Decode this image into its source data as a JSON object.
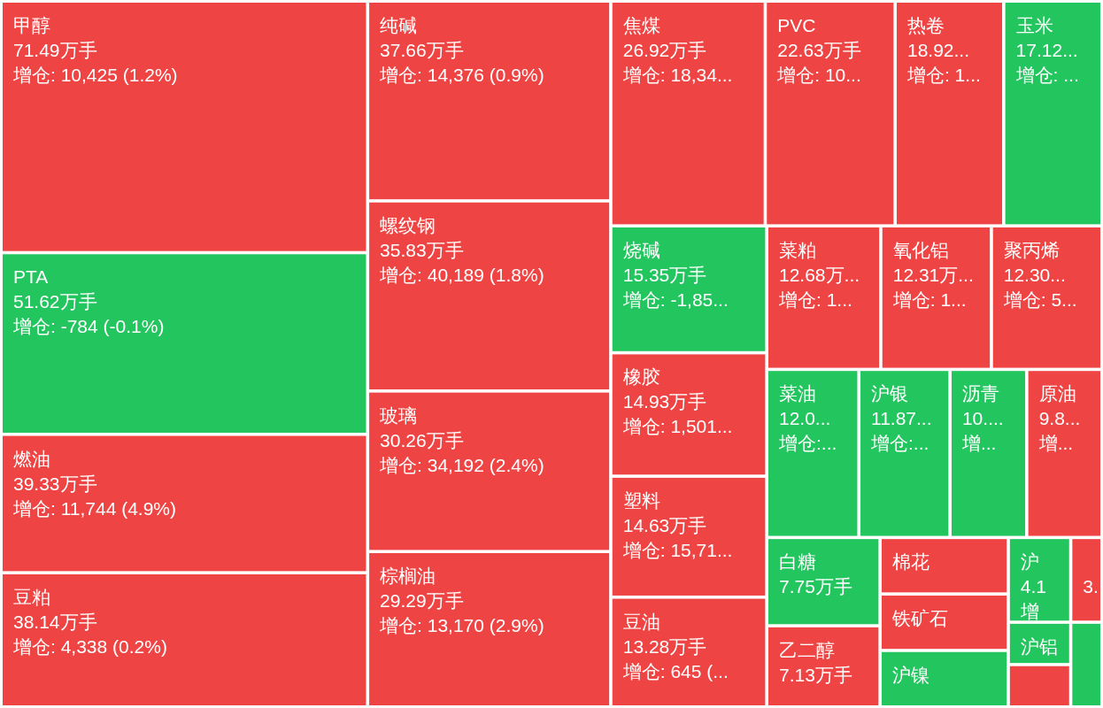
{
  "chart_data": {
    "type": "other",
    "categories": [
      "甲醇",
      "PTA",
      "燃油",
      "豆粕",
      "纯碱",
      "螺纹钢",
      "玻璃",
      "棕榈油",
      "焦煤",
      "PVC",
      "热卷",
      "玉米",
      "烧碱",
      "橡胶",
      "塑料",
      "豆油",
      "菜粕",
      "氧化铝",
      "聚丙烯",
      "菜油",
      "沪银",
      "沥青",
      "原油",
      "白糖",
      "乙二醇",
      "棉花",
      "铁矿石",
      "沪镍",
      "沪",
      null,
      "沪铝",
      null,
      null
    ],
    "values": [
      71.49,
      51.62,
      39.33,
      38.14,
      37.66,
      35.83,
      30.26,
      29.29,
      26.92,
      22.63,
      18.92,
      17.12,
      15.35,
      14.93,
      14.63,
      13.28,
      12.68,
      12.31,
      12.3,
      12.0,
      11.87,
      10,
      9.8,
      7.75,
      7.13,
      null,
      null,
      null,
      4.1,
      null,
      null,
      null,
      null
    ],
    "value_labels": [
      "71.49万手",
      "51.62万手",
      "39.33万手",
      "38.14万手",
      "37.66万手",
      "35.83万手",
      "30.26万手",
      "29.29万手",
      "26.92万手",
      "22.63万手",
      "18.92...",
      "17.12...",
      "15.35万手",
      "14.93万手",
      "14.63万手",
      "13.28万手",
      "12.68万...",
      "12.31万...",
      "12.30...",
      "12.0...",
      "11.87...",
      "10....",
      "9.8...",
      "7.75万手",
      "7.13万手",
      null,
      null,
      null,
      "4.1",
      "3.",
      null,
      null,
      null
    ],
    "colors": [
      "#ef4444",
      "#22c55e",
      "#ef4444",
      "#ef4444",
      "#ef4444",
      "#ef4444",
      "#ef4444",
      "#ef4444",
      "#ef4444",
      "#ef4444",
      "#ef4444",
      "#22c55e",
      "#22c55e",
      "#ef4444",
      "#ef4444",
      "#ef4444",
      "#ef4444",
      "#ef4444",
      "#ef4444",
      "#22c55e",
      "#22c55e",
      "#22c55e",
      "#ef4444",
      "#22c55e",
      "#ef4444",
      "#ef4444",
      "#ef4444",
      "#22c55e",
      "#22c55e",
      "#ef4444",
      "#22c55e",
      "#ef4444",
      "#22c55e"
    ],
    "annotations": [
      {
        "text": "增仓: 10,425 (1.2%)",
        "x": "甲醇"
      },
      {
        "text": "增仓: -784 (-0.1%)",
        "x": "PTA"
      },
      {
        "text": "增仓: 11,744 (4.9%)",
        "x": "燃油"
      },
      {
        "text": "增仓: 4,338 (0.2%)",
        "x": "豆粕"
      },
      {
        "text": "增仓: 14,376 (0.9%)",
        "x": "纯碱"
      },
      {
        "text": "增仓: 40,189 (1.8%)",
        "x": "螺纹钢"
      },
      {
        "text": "增仓: 34,192 (2.4%)",
        "x": "玻璃"
      },
      {
        "text": "增仓: 13,170 (2.9%)",
        "x": "棕榈油"
      },
      {
        "text": "增仓: 18,34...",
        "x": "焦煤"
      },
      {
        "text": "增仓: 10...",
        "x": "PVC"
      },
      {
        "text": "增仓: 1...",
        "x": "热卷"
      },
      {
        "text": "增仓: ...",
        "x": "玉米"
      },
      {
        "text": "增仓: -1,85...",
        "x": "烧碱"
      },
      {
        "text": "增仓: 1,501...",
        "x": "橡胶"
      },
      {
        "text": "增仓: 15,71...",
        "x": "塑料"
      },
      {
        "text": "增仓: 645 (...",
        "x": "豆油"
      },
      {
        "text": "增仓: 1...",
        "x": "菜粕"
      },
      {
        "text": "增仓: 1...",
        "x": "氧化铝"
      },
      {
        "text": "增仓: 5...",
        "x": "聚丙烯"
      },
      {
        "text": "增仓:...",
        "x": "菜油"
      },
      {
        "text": "增仓:...",
        "x": "沪银"
      },
      {
        "text": "增...",
        "x": "沥青"
      },
      {
        "text": "增...",
        "x": "原油"
      },
      {
        "text": "增",
        "x": "沪"
      }
    ]
  }
}
